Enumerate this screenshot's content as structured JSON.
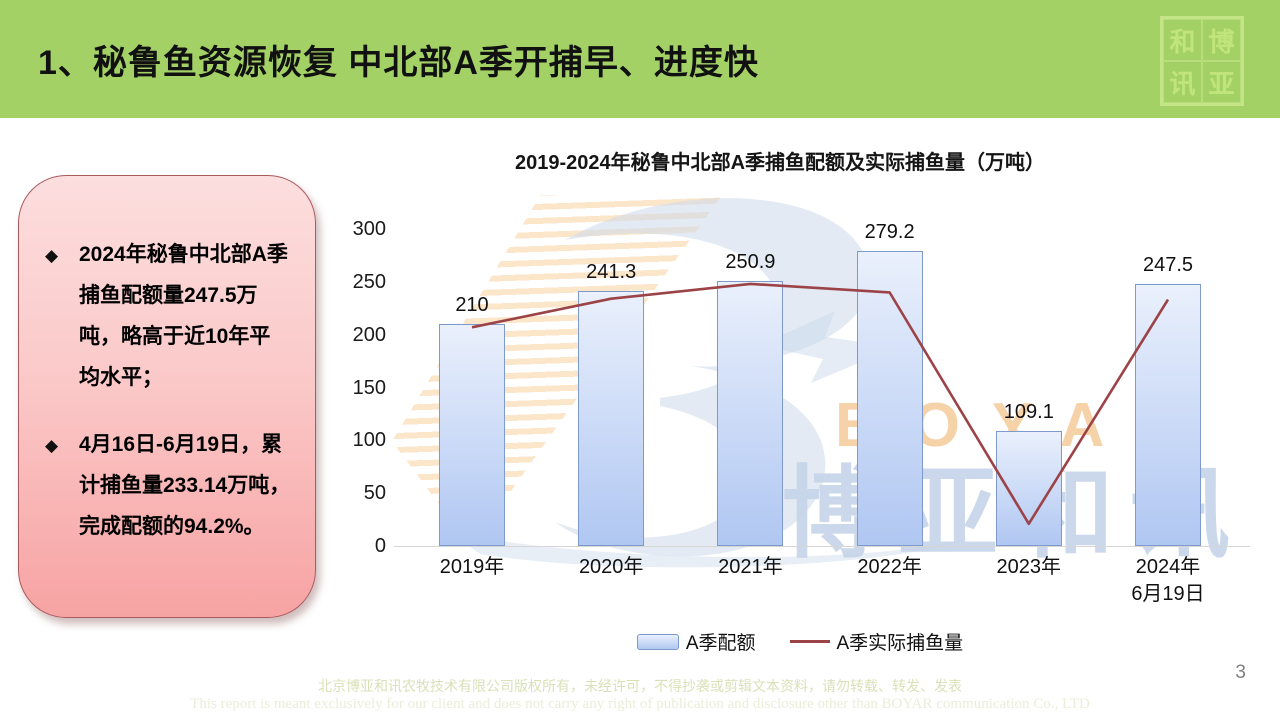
{
  "slide": {
    "title": "1、秘鲁鱼资源恢复 中北部A季开捕早、进度快",
    "page_number": "3",
    "logo_chars": [
      "和",
      "博",
      "讯",
      "亚"
    ],
    "footer_line1": "北京博亚和讯农牧技术有限公司版权所有，未经许可，不得抄袭或剪辑文本资料，请勿转载、转发、发表",
    "footer_line2": "This report is meant exclusively for our client and does not carry any right of publication and disclosure other than BOYAR communication Co., LTD"
  },
  "ui": {
    "bullet_icon": "◆"
  },
  "callout": {
    "bullets": [
      "2024年秘鲁中北部A季捕鱼配额量247.5万吨，略高于近10年平均水平；",
      "4月16日-6月19日，累计捕鱼量233.14万吨，完成配额的94.2%。"
    ]
  },
  "watermark": {
    "brand_en": "BOYAR",
    "brand_cn": "博亚和讯"
  },
  "colors": {
    "header_green": "#a3d166",
    "callout_pink_top": "#fcdede",
    "callout_pink_bottom": "#f7a3a3",
    "bar_fill_top": "#eaf0fc",
    "bar_fill_bottom": "#b0c7f2",
    "bar_border": "#7e99cc",
    "line_red": "#9C4347",
    "axis_gray": "#d6d6d6"
  },
  "chart_data": {
    "type": "bar",
    "title": "2019-2024年秘鲁中北部A季捕鱼配额及实际捕鱼量（万吨）",
    "categories": [
      "2019年",
      "2020年",
      "2021年",
      "2022年",
      "2023年",
      "2024年\n6月19日"
    ],
    "series": [
      {
        "name": "A季配额",
        "type": "bar",
        "values": [
          210,
          241.3,
          250.9,
          279.2,
          109.1,
          247.5
        ],
        "labels": [
          "210",
          "241.3",
          "250.9",
          "279.2",
          "109.1",
          "247.5"
        ],
        "fill_top": "#eaf0fc",
        "fill_bottom": "#b0c7f2",
        "border": "#7e99cc"
      },
      {
        "name": "A季实际捕鱼量",
        "type": "line",
        "values": [
          207,
          234,
          248,
          240,
          21,
          233.14
        ],
        "color": "#9C4347"
      }
    ],
    "xlabel": "",
    "ylabel": "",
    "unit": "万吨",
    "ylim": [
      0,
      300
    ],
    "yticks": [
      0,
      50,
      100,
      150,
      200,
      250,
      300
    ],
    "legend_position": "bottom",
    "grid": false
  }
}
